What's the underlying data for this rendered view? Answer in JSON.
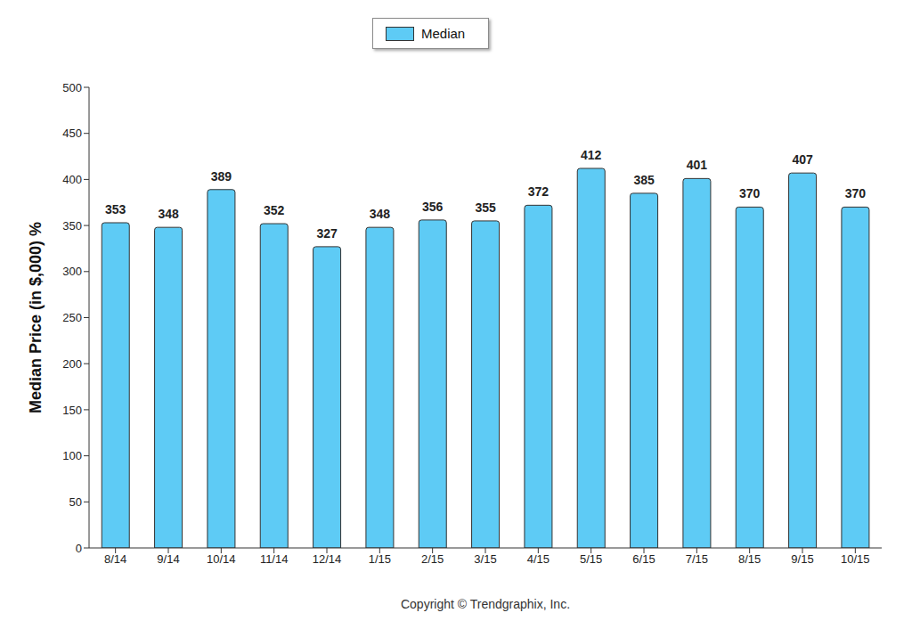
{
  "chart_data": {
    "type": "bar",
    "categories": [
      "8/14",
      "9/14",
      "10/14",
      "11/14",
      "12/14",
      "1/15",
      "2/15",
      "3/15",
      "4/15",
      "5/15",
      "6/15",
      "7/15",
      "8/15",
      "9/15",
      "10/15"
    ],
    "series": [
      {
        "name": "Median",
        "color": "#5ecbf5",
        "values": [
          353,
          348,
          389,
          352,
          327,
          348,
          356,
          355,
          372,
          412,
          385,
          401,
          370,
          407,
          370
        ]
      }
    ],
    "y_label": "Median Price (in $,000) %",
    "annotations": [
      "Copyright © Trendgraphix, Inc."
    ],
    "ylim": [
      0,
      500
    ],
    "yticks": [
      0,
      50,
      100,
      150,
      200,
      250,
      300,
      350,
      400,
      450,
      500
    ],
    "grid": false,
    "legend": "top",
    "data_labels": true
  }
}
